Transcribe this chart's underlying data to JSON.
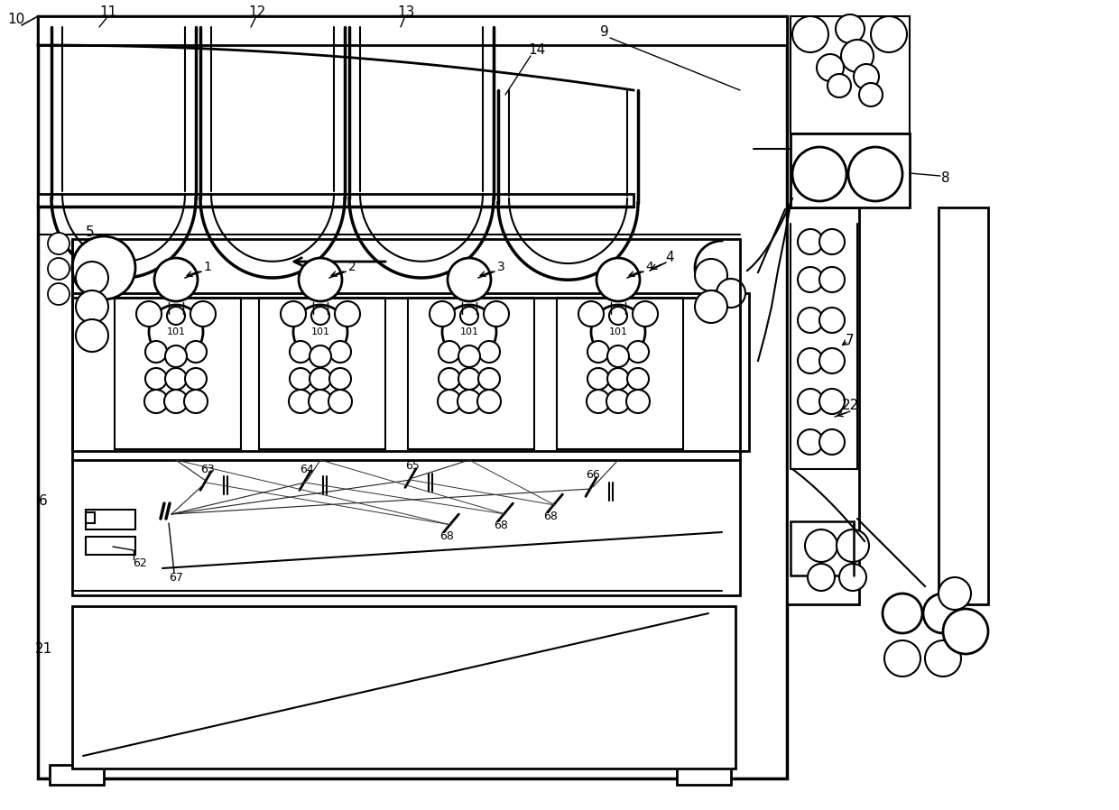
{
  "bg_color": "#ffffff",
  "line_color": "#000000",
  "fig_width": 12.4,
  "fig_height": 8.98
}
